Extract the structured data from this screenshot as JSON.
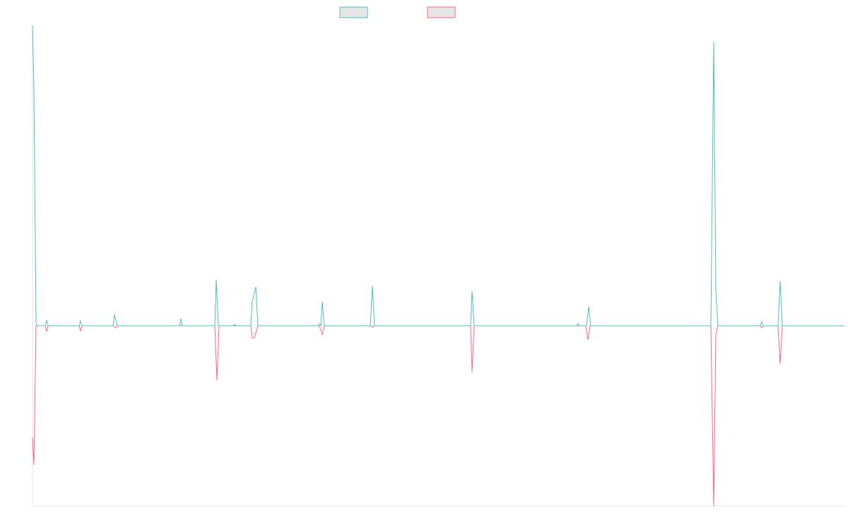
{
  "chart_data": {
    "type": "line",
    "xlim": [
      0,
      1149
    ],
    "ylim": [
      -255,
      425
    ],
    "series": [
      {
        "color": "#ff6384",
        "x": [
          0,
          2,
          5,
          18,
          20,
          22,
          66,
          68,
          70,
          114,
          118,
          120,
          258,
          261,
          264,
          309,
          311,
          314,
          319,
          406,
          410,
          413,
          478,
          481,
          484,
          620,
          622,
          625,
          783,
          786,
          789,
          960,
          964,
          967,
          970,
          1030,
          1032,
          1034,
          1055,
          1058,
          1061,
          1149
        ],
        "values": [
          -158,
          -197,
          0,
          0,
          -8,
          0,
          0,
          -7,
          0,
          0,
          -3,
          0,
          0,
          -77,
          0,
          0,
          -17,
          -17,
          0,
          0,
          -12,
          0,
          0,
          -2,
          0,
          0,
          -65,
          0,
          0,
          -20,
          0,
          0,
          -255,
          -12,
          0,
          0,
          -3,
          0,
          0,
          -54,
          0,
          0
        ]
      },
      {
        "color": "#4bc0c0",
        "x": [
          0,
          2,
          5,
          7,
          18,
          20,
          22,
          66,
          68,
          70,
          114,
          116,
          120,
          208,
          210,
          212,
          258,
          260,
          263,
          284,
          286,
          288,
          309,
          311,
          316,
          319,
          404,
          406,
          408,
          410,
          413,
          478,
          481,
          484,
          620,
          622,
          625,
          770,
          772,
          774,
          784,
          787,
          790,
          960,
          964,
          967,
          970,
          1030,
          1032,
          1034,
          1055,
          1058,
          1061,
          1149
        ],
        "values": [
          425,
          335,
          5,
          0,
          0,
          8,
          0,
          0,
          7,
          0,
          0,
          16,
          0,
          0,
          10,
          0,
          0,
          65,
          0,
          0,
          2,
          0,
          0,
          35,
          55,
          0,
          0,
          3,
          0,
          34,
          0,
          0,
          56,
          0,
          0,
          49,
          0,
          0,
          3,
          0,
          0,
          27,
          0,
          0,
          402,
          50,
          0,
          0,
          6,
          0,
          0,
          63,
          0,
          0
        ]
      }
    ]
  }
}
